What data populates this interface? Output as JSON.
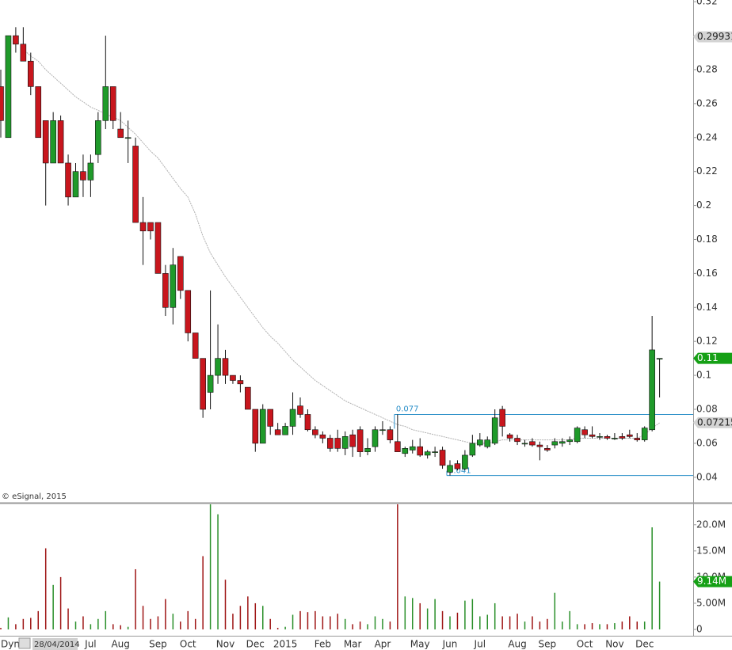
{
  "chart_data": {
    "type": "candlestick",
    "annotation": "© eSignal, 2015",
    "categories": [
      null,
      null,
      null,
      null,
      null,
      null,
      null,
      null,
      null,
      null,
      null,
      null,
      "Jul",
      null,
      null,
      null,
      "Aug",
      null,
      null,
      null,
      null,
      "Sep",
      null,
      null,
      null,
      "Oct",
      null,
      null,
      null,
      null,
      "Nov",
      null,
      null,
      null,
      "Dec",
      null,
      null,
      null,
      "2015",
      null,
      null,
      null,
      null,
      "Feb",
      null,
      null,
      null,
      "Mar",
      null,
      null,
      null,
      "Apr",
      null,
      null,
      null,
      null,
      "May",
      null,
      null,
      null,
      "Jun",
      null,
      null,
      null,
      "Jul",
      null,
      null,
      null,
      null,
      "Aug",
      null,
      null,
      null,
      "Sep",
      null,
      null,
      null,
      null,
      "Oct",
      null,
      null,
      null,
      "Nov",
      null,
      null,
      null,
      "Dec",
      null,
      null
    ],
    "open": [
      0.27,
      0.24,
      0.3,
      0.295,
      0.285,
      0.27,
      0.25,
      0.225,
      0.25,
      0.225,
      0.205,
      0.22,
      0.215,
      0.23,
      0.25,
      0.27,
      0.245,
      0.24,
      0.235,
      0.19,
      0.19,
      0.19,
      0.16,
      0.14,
      0.17,
      0.15,
      0.125,
      0.11,
      0.09,
      0.1,
      0.11,
      0.1,
      0.097,
      0.093,
      0.08,
      0.06,
      0.08,
      0.068,
      0.065,
      0.07,
      0.082,
      0.077,
      0.068,
      0.065,
      0.063,
      0.063,
      0.057,
      0.065,
      0.068,
      0.055,
      0.058,
      0.068,
      0.068,
      0.061,
      0.054,
      0.056,
      0.058,
      0.053,
      0.055,
      0.056,
      0.043,
      0.048,
      0.045,
      0.053,
      0.059,
      0.058,
      0.06,
      0.08,
      0.065,
      0.063,
      0.06,
      0.061,
      0.059,
      0.057,
      0.059,
      0.06,
      0.061,
      0.061,
      0.068,
      0.065,
      0.064,
      0.064,
      0.063,
      0.064,
      0.065,
      0.063,
      0.062,
      0.068,
      0.11
    ],
    "high": [
      0.28,
      0.3,
      0.305,
      0.305,
      0.29,
      0.27,
      0.25,
      0.255,
      0.253,
      0.23,
      0.225,
      0.23,
      0.23,
      0.255,
      0.3,
      0.27,
      0.255,
      0.25,
      0.24,
      0.205,
      0.19,
      0.19,
      0.165,
      0.175,
      0.17,
      0.15,
      0.125,
      0.11,
      0.15,
      0.13,
      0.115,
      0.1,
      0.1,
      0.093,
      0.08,
      0.083,
      0.08,
      0.072,
      0.072,
      0.09,
      0.087,
      0.08,
      0.07,
      0.067,
      0.065,
      0.068,
      0.067,
      0.068,
      0.07,
      0.063,
      0.07,
      0.073,
      0.07,
      0.077,
      0.058,
      0.062,
      0.063,
      0.056,
      0.058,
      0.058,
      0.05,
      0.05,
      0.056,
      0.065,
      0.066,
      0.064,
      0.08,
      0.082,
      0.066,
      0.065,
      0.062,
      0.063,
      0.061,
      0.059,
      0.063,
      0.063,
      0.064,
      0.07,
      0.07,
      0.07,
      0.066,
      0.065,
      0.066,
      0.066,
      0.068,
      0.066,
      0.07,
      0.135,
      0.11
    ],
    "low": [
      0.24,
      0.24,
      0.29,
      0.285,
      0.265,
      0.24,
      0.2,
      0.225,
      0.225,
      0.2,
      0.205,
      0.205,
      0.205,
      0.225,
      0.245,
      0.245,
      0.24,
      0.225,
      0.19,
      0.165,
      0.18,
      0.16,
      0.135,
      0.13,
      0.145,
      0.12,
      0.11,
      0.075,
      0.08,
      0.095,
      0.095,
      0.095,
      0.09,
      0.08,
      0.055,
      0.06,
      0.065,
      0.065,
      0.065,
      0.065,
      0.075,
      0.067,
      0.063,
      0.06,
      0.055,
      0.055,
      0.053,
      0.052,
      0.052,
      0.053,
      0.055,
      0.065,
      0.06,
      0.055,
      0.052,
      0.054,
      0.052,
      0.051,
      0.052,
      0.045,
      0.041,
      0.044,
      0.044,
      0.052,
      0.058,
      0.057,
      0.059,
      0.064,
      0.061,
      0.059,
      0.058,
      0.058,
      0.05,
      0.055,
      0.057,
      0.058,
      0.059,
      0.06,
      0.063,
      0.063,
      0.062,
      0.062,
      0.062,
      0.062,
      0.063,
      0.061,
      0.061,
      0.067,
      0.087
    ],
    "close": [
      0.25,
      0.3,
      0.295,
      0.285,
      0.27,
      0.24,
      0.225,
      0.25,
      0.225,
      0.205,
      0.22,
      0.215,
      0.225,
      0.25,
      0.27,
      0.25,
      0.24,
      0.24,
      0.19,
      0.185,
      0.185,
      0.16,
      0.14,
      0.165,
      0.15,
      0.125,
      0.11,
      0.08,
      0.1,
      0.11,
      0.1,
      0.097,
      0.095,
      0.08,
      0.06,
      0.08,
      0.07,
      0.065,
      0.07,
      0.08,
      0.077,
      0.068,
      0.065,
      0.063,
      0.057,
      0.057,
      0.064,
      0.058,
      0.055,
      0.057,
      0.068,
      0.068,
      0.062,
      0.055,
      0.057,
      0.058,
      0.053,
      0.055,
      0.055,
      0.047,
      0.047,
      0.045,
      0.053,
      0.06,
      0.062,
      0.062,
      0.075,
      0.07,
      0.063,
      0.061,
      0.06,
      0.059,
      0.058,
      0.056,
      0.061,
      0.061,
      0.062,
      0.069,
      0.065,
      0.064,
      0.064,
      0.063,
      0.063,
      0.063,
      0.064,
      0.062,
      0.069,
      0.115,
      0.11
    ],
    "moving_average": [
      null,
      null,
      null,
      0.292,
      0.288,
      0.285,
      0.28,
      0.276,
      0.272,
      0.268,
      0.264,
      0.261,
      0.258,
      0.256,
      0.254,
      0.252,
      0.25,
      0.246,
      0.242,
      0.237,
      0.232,
      0.228,
      0.222,
      0.216,
      0.21,
      0.205,
      0.195,
      0.182,
      0.172,
      0.165,
      0.158,
      0.152,
      0.146,
      0.14,
      0.134,
      0.128,
      0.123,
      0.119,
      0.114,
      0.109,
      0.105,
      0.101,
      0.097,
      0.094,
      0.091,
      0.088,
      0.085,
      0.083,
      0.081,
      0.079,
      0.077,
      0.075,
      0.073,
      0.071,
      0.07,
      0.068,
      0.067,
      0.066,
      0.065,
      0.064,
      0.063,
      0.062,
      0.061,
      0.06,
      0.06,
      0.06,
      0.061,
      0.062,
      0.062,
      0.062,
      0.062,
      0.062,
      0.062,
      0.062,
      0.062,
      0.062,
      0.062,
      0.063,
      0.063,
      0.063,
      0.063,
      0.063,
      0.063,
      0.063,
      0.063,
      0.063,
      0.065,
      0.069,
      0.072
    ],
    "volume": [
      300000,
      2300000,
      1000000,
      2000000,
      2200000,
      3500000,
      15500000,
      8500000,
      10000000,
      4000000,
      1500000,
      2500000,
      1000000,
      2000000,
      3500000,
      1000000,
      800000,
      500000,
      11500000,
      4500000,
      2000000,
      2500000,
      5800000,
      3000000,
      1500000,
      3500000,
      2000000,
      14000000,
      24000000,
      22000000,
      9500000,
      3000000,
      4500000,
      6300000,
      5000000,
      4500000,
      2000000,
      300000,
      500000,
      2800000,
      3500000,
      3300000,
      3500000,
      2500000,
      2500000,
      3000000,
      2000000,
      1000000,
      1500000,
      1000000,
      2500000,
      2000000,
      1500000,
      24000000,
      6300000,
      6000000,
      5000000,
      4000000,
      5800000,
      3500000,
      2500000,
      3200000,
      5500000,
      5800000,
      2500000,
      2800000,
      5000000,
      2500000,
      2500000,
      3000000,
      1500000,
      2500000,
      1500000,
      2000000,
      7000000,
      1500000,
      3500000,
      1000000,
      1000000,
      1200000,
      1000000,
      1000000,
      1200000,
      1500000,
      2500000,
      1500000,
      1500000,
      19500000,
      9140000
    ],
    "up_color": "#1f9a2a",
    "down_color": "#c8161d",
    "up_volume_color": "#2a8f2a",
    "down_volume_color": "#9e1414",
    "ma_color": "#b0b0b0",
    "level_color": "#2a8fc8",
    "levels": [
      0.077,
      0.041
    ],
    "ylim": [
      0.025,
      0.321
    ],
    "yticks": [
      0.32,
      0.3,
      0.28,
      0.26,
      0.24,
      0.22,
      0.2,
      0.18,
      0.16,
      0.14,
      0.12,
      0.1,
      0.08,
      0.06,
      0.04
    ],
    "price_markers": [
      0.29931,
      0.11,
      0.07215
    ],
    "price_marker_colors": [
      "#d4d4d4",
      "#15a015",
      "#d4d4d4"
    ],
    "volume_ylim": [
      0,
      23900000
    ],
    "volume_ticks": [
      {
        "value": 20000000,
        "label": "20.0M"
      },
      {
        "value": 15000000,
        "label": "15.0M"
      },
      {
        "value": 10000000,
        "label": "10.0M"
      },
      {
        "value": 5000000,
        "label": "5.00M"
      },
      0
    ],
    "volume_marker": {
      "value": 9140000,
      "label": "9.14M"
    },
    "volume_marker_color": "#15a015"
  },
  "toolbar": {
    "mode": "Dyn",
    "date": "28/04/2014"
  }
}
